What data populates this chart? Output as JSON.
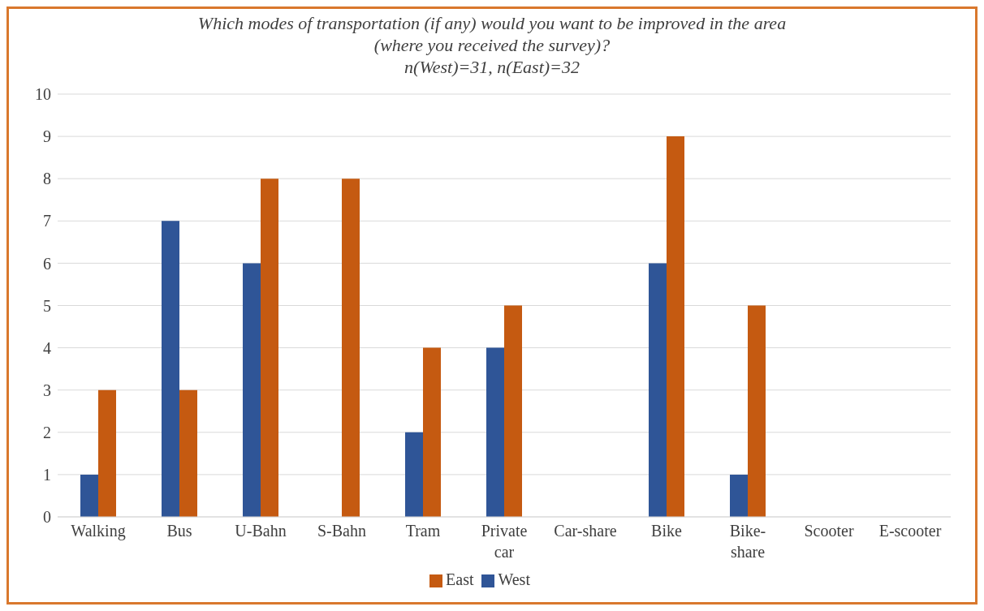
{
  "chart_data": {
    "type": "bar",
    "title": "Which modes of transportation (if any) would you want to be improved in the area\n(where you received the survey)?",
    "subtitle": "n(West)=31, n(East)=32",
    "categories": [
      "Walking",
      "Bus",
      "U-Bahn",
      "S-Bahn",
      "Tram",
      "Private car",
      "Car-share",
      "Bike",
      "Bike-share",
      "Scooter",
      "E-scooter"
    ],
    "series": [
      {
        "name": "West",
        "color": "#2f5597",
        "values": [
          1,
          7,
          6,
          0,
          2,
          4,
          0,
          6,
          1,
          0,
          0
        ]
      },
      {
        "name": "East",
        "color": "#c55a11",
        "values": [
          3,
          3,
          8,
          8,
          4,
          5,
          0,
          9,
          5,
          0,
          0
        ]
      }
    ],
    "ylim": [
      0,
      10
    ],
    "yticks": [
      0,
      1,
      2,
      3,
      4,
      5,
      6,
      7,
      8,
      9,
      10
    ],
    "grid": "y",
    "legend": "bottom"
  }
}
